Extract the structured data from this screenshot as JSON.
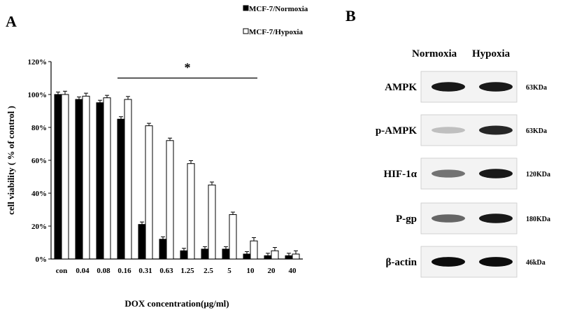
{
  "panel_a": {
    "letter": "A"
  },
  "panel_b": {
    "letter": "B",
    "column_headers": [
      "Normoxia",
      "Hypoxia"
    ],
    "rows": [
      {
        "label": "AMPK",
        "size": "63KDa",
        "normoxia_intensity": 0.9,
        "hypoxia_intensity": 0.9
      },
      {
        "label": "p-AMPK",
        "size": "63KDa",
        "normoxia_intensity": 0.25,
        "hypoxia_intensity": 0.85
      },
      {
        "label": "HIF-1α",
        "size": "120KDa",
        "normoxia_intensity": 0.55,
        "hypoxia_intensity": 0.9
      },
      {
        "label": "P-gp",
        "size": "180KDa",
        "normoxia_intensity": 0.6,
        "hypoxia_intensity": 0.9
      },
      {
        "label": "β-actin",
        "size": "46kDa",
        "normoxia_intensity": 0.95,
        "hypoxia_intensity": 0.95
      }
    ]
  },
  "chart_data": {
    "type": "bar",
    "title": "",
    "xlabel": "DOX concentration(μg/ml)",
    "ylabel": "cell viability ( % of control )",
    "categories": [
      "con",
      "0.04",
      "0.08",
      "0.16",
      "0.31",
      "0.63",
      "1.25",
      "2.5",
      "5",
      "10",
      "20",
      "40"
    ],
    "ylim": [
      0,
      120
    ],
    "yticks": [
      "0%",
      "20%",
      "40%",
      "60%",
      "80%",
      "100%",
      "120%"
    ],
    "series": [
      {
        "name": "MCF-7/Normoxia",
        "color": "#000000",
        "values": [
          100,
          97,
          95,
          85,
          21,
          12,
          5,
          6,
          6,
          3,
          2,
          2
        ],
        "errors": [
          1.5,
          1.5,
          1.5,
          1.5,
          1.5,
          1.5,
          1.5,
          1.5,
          1.5,
          1.5,
          1.5,
          1.5
        ]
      },
      {
        "name": "MCF-7/Hypoxia",
        "color": "#ffffff",
        "values": [
          100,
          99,
          98,
          97,
          81,
          72,
          58,
          45,
          27,
          11,
          5,
          3
        ],
        "errors": [
          2,
          1.8,
          1.5,
          1.8,
          1.5,
          1.5,
          1.8,
          1.8,
          1.5,
          2,
          2,
          2
        ]
      }
    ],
    "significance": {
      "label": "*",
      "from_category": "0.16",
      "to_category": "10"
    },
    "legend_position": "top-right"
  }
}
